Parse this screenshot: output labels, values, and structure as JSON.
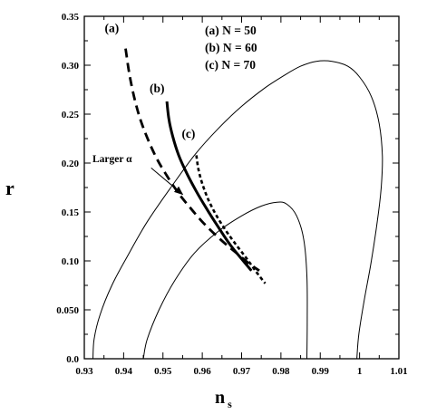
{
  "chart_data": {
    "type": "line",
    "xlabel": "n",
    "xlabel_sub": "s",
    "ylabel": "r",
    "xlim": [
      0.93,
      1.01
    ],
    "ylim": [
      0.0,
      0.35
    ],
    "x_ticks": [
      0.93,
      0.94,
      0.95,
      0.96,
      0.97,
      0.98,
      0.99,
      1.0,
      1.01
    ],
    "x_tick_labels": [
      "0.93",
      "0.94",
      "0.95",
      "0.96",
      "0.97",
      "0.98",
      "0.99",
      "1",
      "1.01"
    ],
    "y_ticks": [
      0.0,
      0.05,
      0.1,
      0.15,
      0.2,
      0.25,
      0.3,
      0.35
    ],
    "y_tick_labels": [
      "0.0",
      "0.050",
      "0.10",
      "0.15",
      "0.20",
      "0.25",
      "0.30",
      "0.35"
    ],
    "grid": false,
    "legend": {
      "placement": "top-center",
      "entries": [
        "(a) N = 50",
        "(b) N = 60",
        "(c) N = 70"
      ]
    },
    "annotations": [
      {
        "text": "Larger α",
        "arrow_from": [
          0.947,
          0.195
        ],
        "arrow_to": [
          0.955,
          0.168
        ]
      }
    ],
    "series": [
      {
        "label": "(a)",
        "style": "dashed",
        "label_pos": [
          0.937,
          0.334
        ],
        "x": [
          0.9405,
          0.9415,
          0.943,
          0.945,
          0.948,
          0.951,
          0.954,
          0.957,
          0.96,
          0.963,
          0.966,
          0.969,
          0.972,
          0.9745
        ],
        "y": [
          0.317,
          0.29,
          0.262,
          0.236,
          0.208,
          0.187,
          0.169,
          0.154,
          0.14,
          0.128,
          0.117,
          0.107,
          0.097,
          0.09
        ]
      },
      {
        "label": "(b)",
        "style": "solid",
        "label_pos": [
          0.9485,
          0.272
        ],
        "x": [
          0.951,
          0.9515,
          0.9525,
          0.954,
          0.956,
          0.9585,
          0.961,
          0.964,
          0.967,
          0.97,
          0.9725
        ],
        "y": [
          0.263,
          0.245,
          0.227,
          0.208,
          0.19,
          0.171,
          0.154,
          0.135,
          0.117,
          0.102,
          0.09
        ]
      },
      {
        "label": "(c)",
        "style": "dotted",
        "label_pos": [
          0.9565,
          0.226
        ],
        "x": [
          0.9585,
          0.959,
          0.96,
          0.9615,
          0.9635,
          0.966,
          0.9685,
          0.971,
          0.9735,
          0.976
        ],
        "y": [
          0.208,
          0.194,
          0.179,
          0.163,
          0.147,
          0.131,
          0.117,
          0.104,
          0.09,
          0.077
        ]
      },
      {
        "label": "outer contour",
        "style": "thin",
        "x": [
          0.9322,
          0.9325,
          0.934,
          0.937,
          0.941,
          0.946,
          0.952,
          0.958,
          0.964,
          0.97,
          0.976,
          0.981,
          0.985,
          0.989,
          0.993,
          0.997,
          1.0,
          1.003,
          1.005,
          1.0058,
          1.0055,
          1.0045,
          1.003,
          1.0012,
          0.9998,
          0.9993
        ],
        "y": [
          0.0,
          0.02,
          0.045,
          0.075,
          0.105,
          0.14,
          0.175,
          0.208,
          0.235,
          0.258,
          0.277,
          0.29,
          0.299,
          0.304,
          0.304,
          0.299,
          0.288,
          0.268,
          0.24,
          0.207,
          0.175,
          0.14,
          0.1,
          0.06,
          0.025,
          0.0
        ]
      },
      {
        "label": "inner contour",
        "style": "thin",
        "x": [
          0.945,
          0.946,
          0.949,
          0.953,
          0.958,
          0.964,
          0.97,
          0.975,
          0.979,
          0.9815,
          0.984,
          0.9858,
          0.9866,
          0.9867,
          0.9866
        ],
        "y": [
          0.0,
          0.02,
          0.05,
          0.08,
          0.108,
          0.13,
          0.146,
          0.156,
          0.16,
          0.158,
          0.146,
          0.122,
          0.085,
          0.04,
          0.0
        ]
      }
    ]
  }
}
